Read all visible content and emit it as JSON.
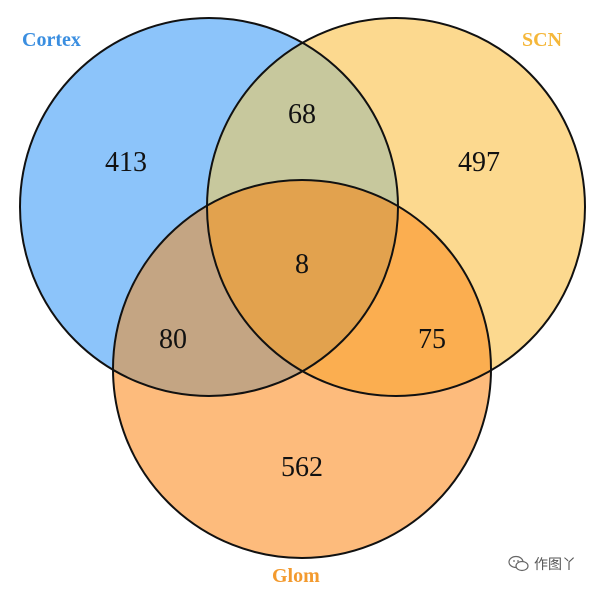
{
  "sets": [
    {
      "name": "Cortex",
      "color": "#8CC4FA",
      "label_color": "#3A8EE0"
    },
    {
      "name": "SCN",
      "color": "#FCD98F",
      "label_color": "#F5B73A"
    },
    {
      "name": "Glom",
      "color": "#FDBB7C",
      "label_color": "#F39A2E"
    }
  ],
  "regions": {
    "cortex_only": "413",
    "scn_only": "497",
    "glom_only": "562",
    "cortex_scn": "68",
    "cortex_glom": "80",
    "scn_glom": "75",
    "all": "8"
  },
  "region_colors": {
    "cortex_scn": "#C7C89D",
    "cortex_glom": "#C4A583",
    "scn_glom": "#FBAE50",
    "all": "#E2A24E"
  },
  "watermark": {
    "icon": "wechat-icon",
    "text": "作图丫"
  }
}
